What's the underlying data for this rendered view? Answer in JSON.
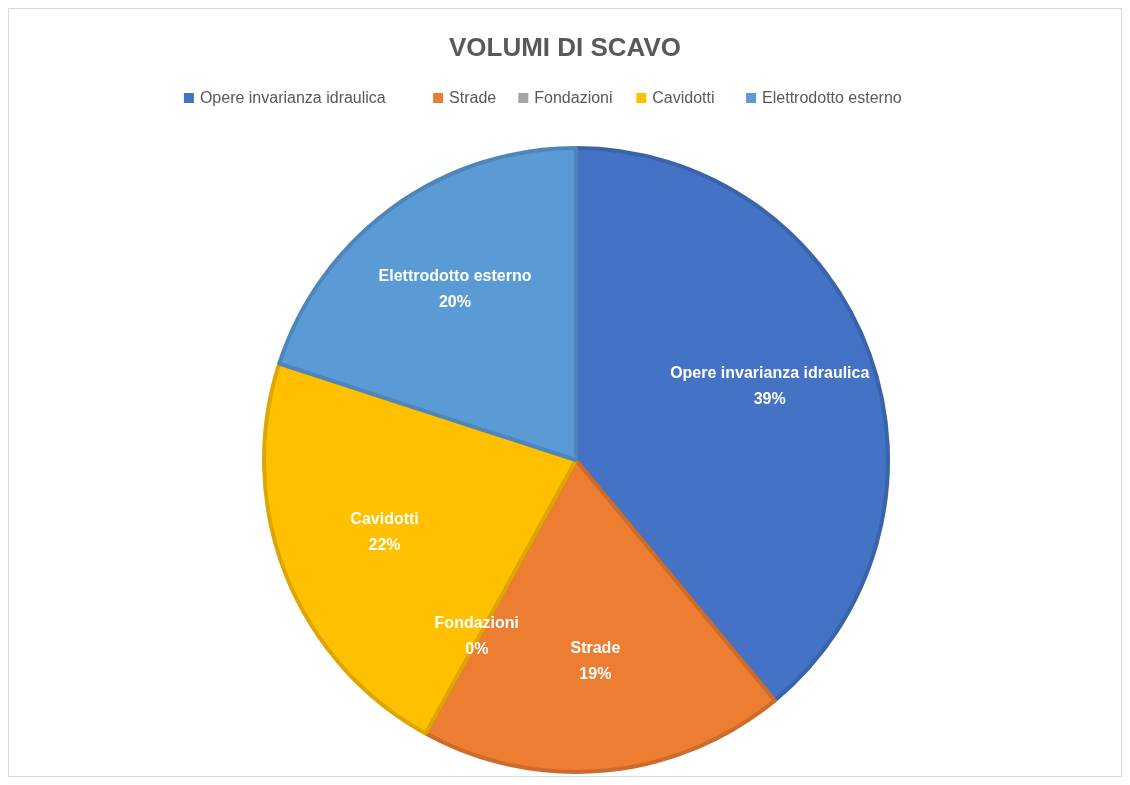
{
  "chart_data": {
    "type": "pie",
    "title": "VOLUMI DI SCAVO",
    "categories": [
      "Opere invarianza idraulica",
      "Strade",
      "Fondazioni",
      "Cavidotti",
      "Elettrodotto esterno"
    ],
    "values": [
      39,
      19,
      0,
      22,
      20
    ],
    "colors": [
      "#4472c4",
      "#ed7d31",
      "#a5a5a5",
      "#ffc000",
      "#5b9bd5"
    ],
    "value_labels": [
      "39%",
      "19%",
      "0%",
      "22%",
      "20%"
    ],
    "legend": "top"
  }
}
